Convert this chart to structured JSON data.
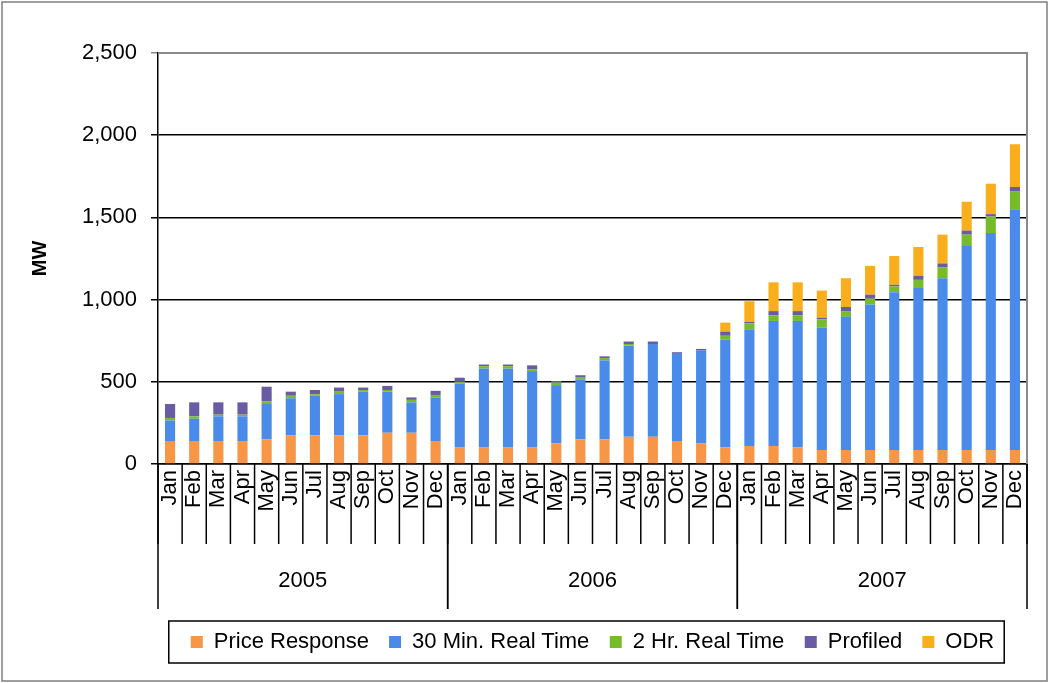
{
  "chart_data": {
    "type": "bar",
    "stacked": true,
    "ylabel": "MW",
    "categories": [
      "Jan",
      "Feb",
      "Mar",
      "Apr",
      "May",
      "Jun",
      "Jul",
      "Aug",
      "Sep",
      "Oct",
      "Nov",
      "Dec",
      "Jan",
      "Feb",
      "Mar",
      "Apr",
      "May",
      "Jun",
      "Jul",
      "Aug",
      "Sep",
      "Oct",
      "Nov",
      "Dec",
      "Jan",
      "Feb",
      "Mar",
      "Apr",
      "May",
      "Jun",
      "Jul",
      "Aug",
      "Sep",
      "Oct",
      "Nov",
      "Dec"
    ],
    "series": [
      {
        "name": "Price Response",
        "color": "#f79646",
        "values": [
          140,
          140,
          140,
          140,
          150,
          175,
          175,
          175,
          175,
          190,
          190,
          140,
          100,
          100,
          100,
          100,
          125,
          150,
          150,
          165,
          165,
          140,
          125,
          100,
          110,
          110,
          100,
          85,
          85,
          85,
          85,
          85,
          85,
          85,
          85,
          85
        ]
      },
      {
        "name": "30 Min. Real Time",
        "color": "#4a8ae8",
        "values": [
          125,
          135,
          150,
          150,
          215,
          225,
          240,
          250,
          265,
          250,
          185,
          265,
          390,
          480,
          480,
          465,
          355,
          365,
          480,
          555,
          565,
          530,
          565,
          655,
          710,
          760,
          770,
          745,
          810,
          885,
          960,
          985,
          1045,
          1245,
          1320,
          1465
        ]
      },
      {
        "name": "2 Hr. Real Time",
        "color": "#78bb2a",
        "values": [
          15,
          15,
          10,
          10,
          15,
          15,
          10,
          15,
          10,
          10,
          15,
          15,
          10,
          15,
          15,
          10,
          15,
          10,
          15,
          10,
          0,
          0,
          0,
          25,
          35,
          35,
          35,
          50,
          35,
          35,
          35,
          50,
          65,
          65,
          100,
          110
        ]
      },
      {
        "name": "Profiled",
        "color": "#6a5ca4",
        "values": [
          85,
          85,
          75,
          75,
          90,
          25,
          25,
          25,
          15,
          25,
          15,
          25,
          25,
          10,
          10,
          25,
          10,
          15,
          10,
          15,
          15,
          10,
          10,
          25,
          10,
          25,
          25,
          10,
          25,
          25,
          10,
          25,
          25,
          25,
          15,
          25
        ]
      },
      {
        "name": "ODR",
        "color": "#f9ae1e",
        "values": [
          0,
          0,
          0,
          0,
          0,
          0,
          0,
          0,
          0,
          0,
          0,
          0,
          0,
          0,
          0,
          0,
          0,
          0,
          0,
          0,
          0,
          0,
          0,
          55,
          125,
          175,
          175,
          165,
          175,
          175,
          175,
          175,
          175,
          175,
          185,
          260
        ]
      }
    ],
    "ylim": [
      0,
      2500
    ],
    "yticks": [
      0,
      500,
      {
        "value": 1000,
        "label": "1,000"
      },
      {
        "value": 1500,
        "label": "1,500"
      },
      {
        "value": 2000,
        "label": "2,000"
      },
      {
        "value": 2500,
        "label": "2,500"
      }
    ],
    "grid": "y",
    "legend": "bottom",
    "annotations": [
      "2005",
      "2006",
      "2007"
    ]
  }
}
